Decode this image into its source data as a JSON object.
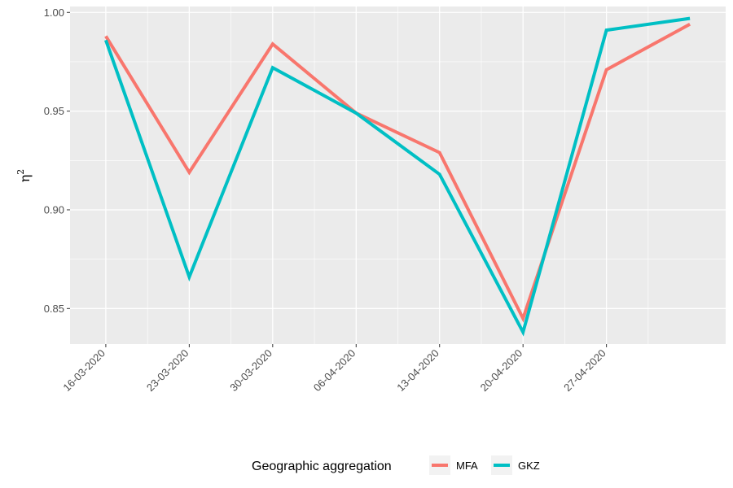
{
  "chart_data": {
    "type": "line",
    "xlabel": "",
    "ylabel": "η",
    "ylabel_superscript": "2",
    "x_tick_labels": [
      "16-03-2020",
      "23-03-2020",
      "30-03-2020",
      "06-04-2020",
      "13-04-2020",
      "20-04-2020",
      "27-04-2020"
    ],
    "x_dates": [
      "2020-03-16",
      "2020-03-23",
      "2020-03-30",
      "2020-04-06",
      "2020-04-13",
      "2020-04-20",
      "2020-04-27",
      "2020-05-04"
    ],
    "x_range": [
      "2020-03-13",
      "2020-05-07"
    ],
    "y_ticks": [
      0.85,
      0.9,
      0.95,
      1.0
    ],
    "y_tick_labels": [
      "0.85",
      "0.90",
      "0.95",
      "1.00"
    ],
    "ylim": [
      0.832,
      1.003
    ],
    "grid": true,
    "legend_position": "bottom",
    "legend_title": "Geographic aggregation",
    "series": [
      {
        "name": "MFA",
        "color": "#F8766D",
        "values": [
          0.988,
          0.919,
          0.984,
          0.949,
          0.929,
          0.845,
          0.971,
          0.994
        ]
      },
      {
        "name": "GKZ",
        "color": "#00BFC4",
        "values": [
          0.986,
          0.866,
          0.972,
          0.949,
          0.918,
          0.838,
          0.991,
          0.997
        ]
      }
    ]
  }
}
